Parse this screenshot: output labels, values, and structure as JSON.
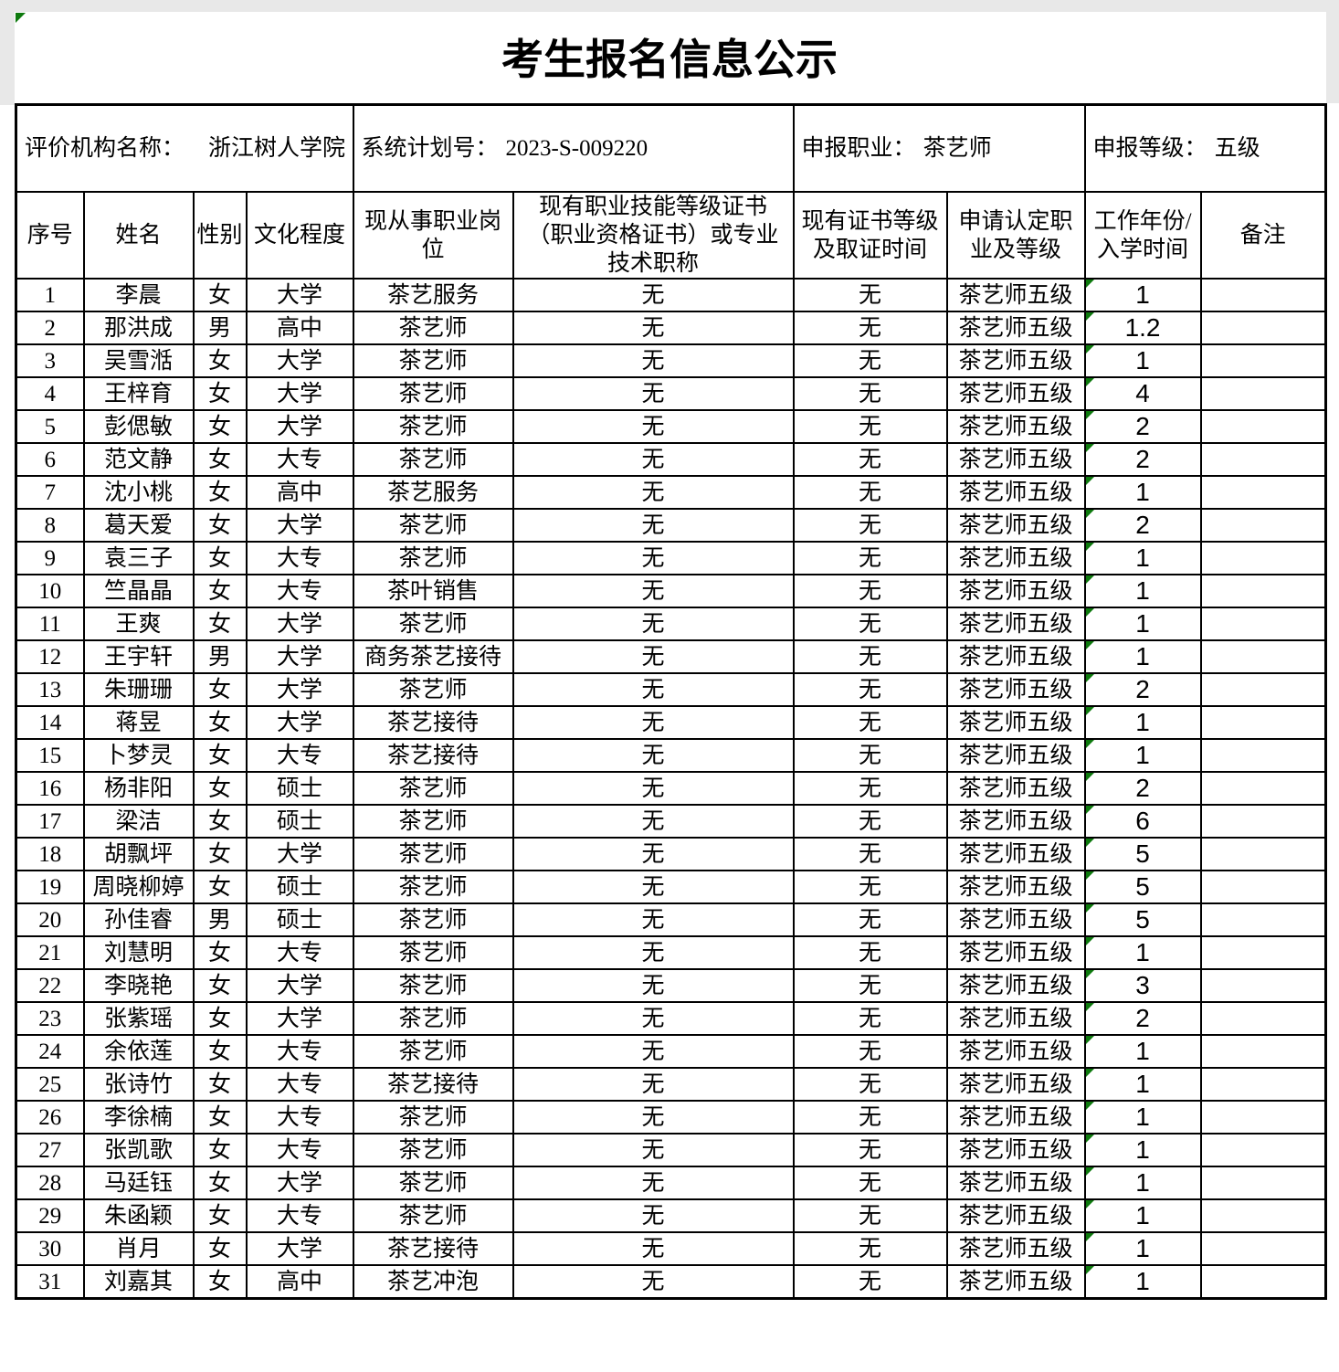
{
  "title": "考生报名信息公示",
  "info": {
    "org_label": "评价机构名称：",
    "org_value": "浙江树人学院",
    "plan_label": "系统计划号：",
    "plan_value": "2023-S-009220",
    "occupation_label": "申报职业：",
    "occupation_value": "茶艺师",
    "level_label": "申报等级：",
    "level_value": "五级"
  },
  "columns": [
    "序号",
    "姓名",
    "性别",
    "文化程度",
    "现从事职业岗位",
    "现有职业技能等级证书（职业资格证书）或专业技术职称",
    "现有证书等级及取证时间",
    "申请认定职业及等级",
    "工作年份/入学时间",
    "备注"
  ],
  "rows": [
    [
      "1",
      "李晨",
      "女",
      "大学",
      "茶艺服务",
      "无",
      "无",
      "茶艺师五级",
      "1",
      ""
    ],
    [
      "2",
      "那洪成",
      "男",
      "高中",
      "茶艺师",
      "无",
      "无",
      "茶艺师五级",
      "1.2",
      ""
    ],
    [
      "3",
      "吴雪湉",
      "女",
      "大学",
      "茶艺师",
      "无",
      "无",
      "茶艺师五级",
      "1",
      ""
    ],
    [
      "4",
      "王梓育",
      "女",
      "大学",
      "茶艺师",
      "无",
      "无",
      "茶艺师五级",
      "4",
      ""
    ],
    [
      "5",
      "彭偲敏",
      "女",
      "大学",
      "茶艺师",
      "无",
      "无",
      "茶艺师五级",
      "2",
      ""
    ],
    [
      "6",
      "范文静",
      "女",
      "大专",
      "茶艺师",
      "无",
      "无",
      "茶艺师五级",
      "2",
      ""
    ],
    [
      "7",
      "沈小桃",
      "女",
      "高中",
      "茶艺服务",
      "无",
      "无",
      "茶艺师五级",
      "1",
      ""
    ],
    [
      "8",
      "葛天爱",
      "女",
      "大学",
      "茶艺师",
      "无",
      "无",
      "茶艺师五级",
      "2",
      ""
    ],
    [
      "9",
      "袁三子",
      "女",
      "大专",
      "茶艺师",
      "无",
      "无",
      "茶艺师五级",
      "1",
      ""
    ],
    [
      "10",
      "竺晶晶",
      "女",
      "大专",
      "茶叶销售",
      "无",
      "无",
      "茶艺师五级",
      "1",
      ""
    ],
    [
      "11",
      "王爽",
      "女",
      "大学",
      "茶艺师",
      "无",
      "无",
      "茶艺师五级",
      "1",
      ""
    ],
    [
      "12",
      "王宇轩",
      "男",
      "大学",
      "商务茶艺接待",
      "无",
      "无",
      "茶艺师五级",
      "1",
      ""
    ],
    [
      "13",
      "朱珊珊",
      "女",
      "大学",
      "茶艺师",
      "无",
      "无",
      "茶艺师五级",
      "2",
      ""
    ],
    [
      "14",
      "蒋昱",
      "女",
      "大学",
      "茶艺接待",
      "无",
      "无",
      "茶艺师五级",
      "1",
      ""
    ],
    [
      "15",
      "卜梦灵",
      "女",
      "大专",
      "茶艺接待",
      "无",
      "无",
      "茶艺师五级",
      "1",
      ""
    ],
    [
      "16",
      "杨非阳",
      "女",
      "硕士",
      "茶艺师",
      "无",
      "无",
      "茶艺师五级",
      "2",
      ""
    ],
    [
      "17",
      "梁洁",
      "女",
      "硕士",
      "茶艺师",
      "无",
      "无",
      "茶艺师五级",
      "6",
      ""
    ],
    [
      "18",
      "胡飘坪",
      "女",
      "大学",
      "茶艺师",
      "无",
      "无",
      "茶艺师五级",
      "5",
      ""
    ],
    [
      "19",
      "周晓柳婷",
      "女",
      "硕士",
      "茶艺师",
      "无",
      "无",
      "茶艺师五级",
      "5",
      ""
    ],
    [
      "20",
      "孙佳睿",
      "男",
      "硕士",
      "茶艺师",
      "无",
      "无",
      "茶艺师五级",
      "5",
      ""
    ],
    [
      "21",
      "刘慧明",
      "女",
      "大专",
      "茶艺师",
      "无",
      "无",
      "茶艺师五级",
      "1",
      ""
    ],
    [
      "22",
      "李晓艳",
      "女",
      "大学",
      "茶艺师",
      "无",
      "无",
      "茶艺师五级",
      "3",
      ""
    ],
    [
      "23",
      "张紫瑶",
      "女",
      "大学",
      "茶艺师",
      "无",
      "无",
      "茶艺师五级",
      "2",
      ""
    ],
    [
      "24",
      "余依莲",
      "女",
      "大专",
      "茶艺师",
      "无",
      "无",
      "茶艺师五级",
      "1",
      ""
    ],
    [
      "25",
      "张诗竹",
      "女",
      "大专",
      "茶艺接待",
      "无",
      "无",
      "茶艺师五级",
      "1",
      ""
    ],
    [
      "26",
      "李徐楠",
      "女",
      "大专",
      "茶艺师",
      "无",
      "无",
      "茶艺师五级",
      "1",
      ""
    ],
    [
      "27",
      "张凯歌",
      "女",
      "大专",
      "茶艺师",
      "无",
      "无",
      "茶艺师五级",
      "1",
      ""
    ],
    [
      "28",
      "马廷钰",
      "女",
      "大学",
      "茶艺师",
      "无",
      "无",
      "茶艺师五级",
      "1",
      ""
    ],
    [
      "29",
      "朱函颖",
      "女",
      "大专",
      "茶艺师",
      "无",
      "无",
      "茶艺师五级",
      "1",
      ""
    ],
    [
      "30",
      "肖月",
      "女",
      "大学",
      "茶艺接待",
      "无",
      "无",
      "茶艺师五级",
      "1",
      ""
    ],
    [
      "31",
      "刘嘉其",
      "女",
      "高中",
      "茶艺冲泡",
      "无",
      "无",
      "茶艺师五级",
      "1",
      ""
    ]
  ],
  "marker_color": "#0e7a0e"
}
